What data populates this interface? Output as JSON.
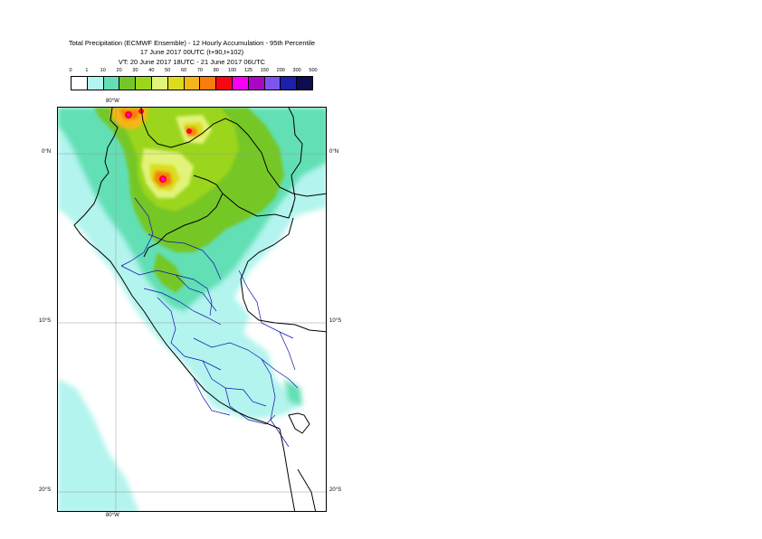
{
  "header": {
    "line1": "Total Precipitation (ECMWF Ensemble) - 12 Hourly Accumulation - 95th Percentile",
    "line2": "17 June 2017 00UTC (t+90,t+102)",
    "line3": "VT: 20 June 2017 18UTC - 21 June 2017 06UTC"
  },
  "legend": {
    "ticks": [
      "0",
      "1",
      "10",
      "20",
      "30",
      "40",
      "50",
      "60",
      "70",
      "80",
      "100",
      "125",
      "150",
      "200",
      "300",
      "500"
    ],
    "colors": [
      "#ffffff",
      "#b3f4ee",
      "#62dfb4",
      "#75c728",
      "#9bd61b",
      "#e2f37a",
      "#dcdc1d",
      "#f5b619",
      "#f77d0d",
      "#f80612",
      "#f500f2",
      "#aa06c5",
      "#7c55ef",
      "#1c20ad",
      "#0c0c4e"
    ]
  },
  "gridlabels": {
    "lon_top": "80°W",
    "lon_bottom": "80°W",
    "lat_eq_left": "0°N",
    "lat_eq_right": "0°N",
    "lat_10_left": "10°S",
    "lat_10_right": "10°S",
    "lat_20_left": "20°S",
    "lat_20_right": "20°S"
  }
}
